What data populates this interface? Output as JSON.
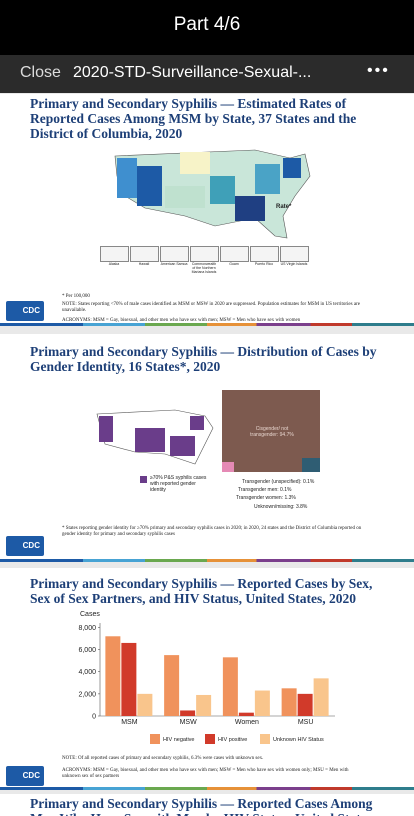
{
  "status_bar": {
    "title": "Part 4/6"
  },
  "toolbar": {
    "close": "Close",
    "title": "2020-STD-Surveillance-Sexual-...",
    "menu": "•••"
  },
  "slides": [
    {
      "title": "Primary and Secondary Syphilis — Estimated Rates of Reported Cases Among MSM by State, 37 States and the District of Columbia, 2020",
      "legend_title": "Rate*",
      "territories": [
        "Alaska",
        "Hawaii",
        "American Samoa",
        "Commonwealth of the Northern Mariana Islands",
        "Guam",
        "Puerto Rico",
        "US Virgin Islands"
      ],
      "footnote": "* Per 100,000",
      "note": "NOTE: States reporting <70% of male cases identified as MSM or MSW in 2020 are suppressed. Population estimates for MSM in US territories are unavailable.",
      "acronyms": "ACRONYMS: MSM = Gay, bisexual, and other men who have sex with men; MSW = Men who have sex with women",
      "logo": "CDC"
    },
    {
      "title": "Primary and Secondary Syphilis — Distribution of Cases by Gender Identity, 16 States*, 2020",
      "map_legend": "≥70% P&S syphilis cases with reported gender identity",
      "segments": [
        "Cisgender/ not transgender: 94.7%",
        "Transgender (unspecified): 0.1%",
        "Transgender men: 0.1%",
        "Transgender women: 1.3%",
        "Unknown/missing: 3.8%"
      ],
      "footnote": "* States reporting gender identity for ≥70% primary and secondary syphilis cases in 2020; in 2020, 24 states and the District of Columbia reported on gender identity for primary and secondary syphilis cases",
      "logo": "CDC"
    },
    {
      "title": "Primary and Secondary Syphilis — Reported Cases by Sex, Sex of Sex Partners, and HIV Status, United States, 2020",
      "chart": {
        "type": "bar",
        "y_label": "Cases",
        "categories": [
          "MSM",
          "MSW",
          "Women",
          "MSU"
        ],
        "series": [
          {
            "name": "HIV negative",
            "color": "#f0925c",
            "values": [
              7200,
              5500,
              5300,
              2500
            ]
          },
          {
            "name": "HIV positive",
            "color": "#d13a2a",
            "values": [
              6600,
              500,
              300,
              2000
            ]
          },
          {
            "name": "Unknown HIV Status",
            "color": "#f9c58c",
            "values": [
              2000,
              1900,
              2300,
              3400
            ]
          }
        ],
        "ylim": [
          0,
          8400
        ],
        "yticks": [
          0,
          {
            "value": 2000,
            "label": "2,000"
          },
          {
            "value": 4000,
            "label": "4,000"
          },
          {
            "value": 6000,
            "label": "6,000"
          },
          {
            "value": 8000,
            "label": "8,000"
          }
        ]
      },
      "note": "NOTE: Of all reported cases of primary and secondary syphilis, 6.3% were cases with unknown sex.",
      "acronyms": "ACRONYMS: MSM = Gay, bisexual, and other men who have sex with men; MSW = Men who have sex with women only; MSU = Men with unknown sex of sex partners",
      "logo": "CDC"
    },
    {
      "title": "Primary and Secondary Syphilis — Reported Cases Among Men Who Have Sex with Men by HIV Status, United States"
    }
  ]
}
